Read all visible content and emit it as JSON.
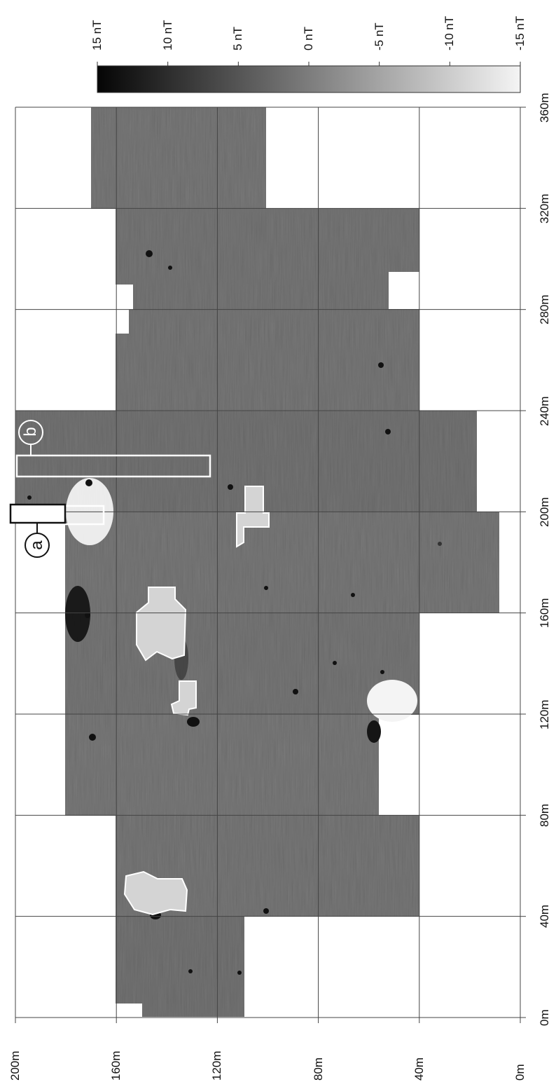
{
  "colorbar": {
    "labels": [
      "15 nT",
      "10 nT",
      "5 nT",
      "0 nT",
      "-5 nT",
      "-10 nT",
      "-15 nT"
    ],
    "values": [
      15,
      10,
      5,
      0,
      -5,
      -10,
      -15
    ],
    "gradient": [
      "#050505",
      "#f4f4f4"
    ],
    "orientation": "horizontal, dark (positive) to light (negative)"
  },
  "axes": {
    "easting_labels": [
      "0m",
      "40m",
      "80m",
      "120m",
      "160m",
      "200m",
      "240m",
      "280m",
      "320m",
      "360m"
    ],
    "northing_labels": [
      "200m",
      "160m",
      "120m",
      "80m",
      "40m",
      "0m"
    ],
    "easting_range_m": [
      0,
      360
    ],
    "northing_range_m": [
      0,
      200
    ],
    "grid": true,
    "grid_spacing_m": 40
  },
  "annotations": {
    "label_a": "a",
    "label_b": "b"
  },
  "colors": {
    "background_field": "#7a7a7a",
    "masked_area": "#d4d4d4",
    "grid_line": "#444444",
    "annotation_outline": "#ffffff"
  }
}
